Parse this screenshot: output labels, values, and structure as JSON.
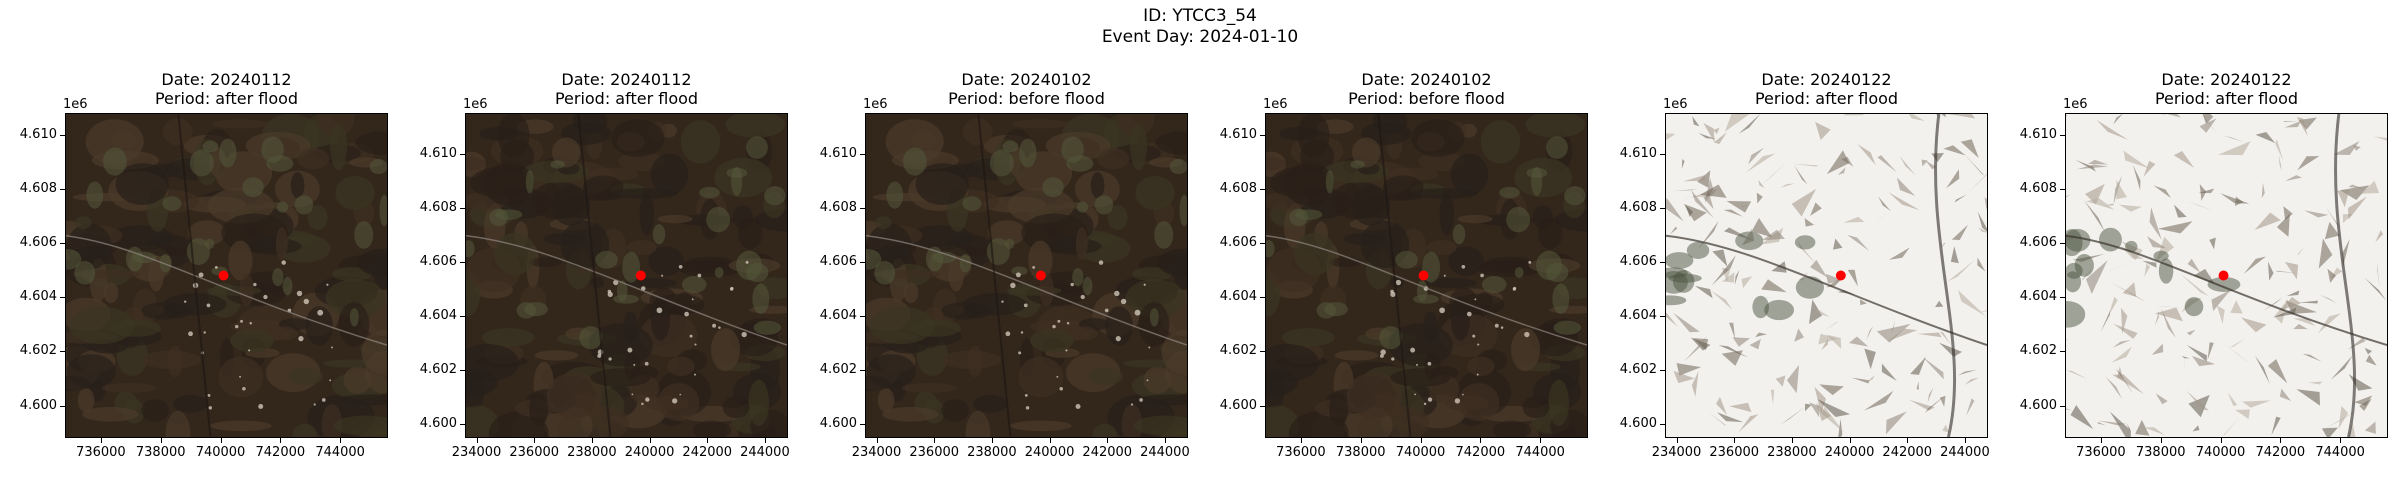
{
  "figure": {
    "id_line": "ID: YTCC3_54",
    "event_line": "Event Day: 2024-01-10"
  },
  "axis_offset": "1e6",
  "y_ticks": [
    "4.610",
    "4.608",
    "4.606",
    "4.604",
    "4.602",
    "4.600"
  ],
  "marker_color": "#ff0000",
  "panels": [
    {
      "date": "Date: 20240112",
      "period": "Period: after flood",
      "scene": "dark",
      "x_ticks": [
        "736000",
        "738000",
        "740000",
        "742000",
        "744000"
      ],
      "x_range": [
        734800,
        745600
      ],
      "y_ticks_visible": [
        "4.610",
        "4.608",
        "4.606",
        "4.604",
        "4.602",
        "4.600"
      ],
      "y_range": [
        4.5988,
        4.6108
      ],
      "marker": {
        "x": 740100,
        "y": 4.6048
      }
    },
    {
      "date": "Date: 20240112",
      "period": "Period: after flood",
      "scene": "dark",
      "x_ticks": [
        "234000",
        "236000",
        "238000",
        "240000",
        "242000",
        "244000"
      ],
      "x_range": [
        233600,
        244800
      ],
      "y_ticks_visible": [
        "4.610",
        "4.608",
        "4.606",
        "4.604",
        "4.602",
        "4.600"
      ],
      "y_range": [
        4.5995,
        4.6115
      ],
      "marker": {
        "x": 239700,
        "y": 4.6055
      }
    },
    {
      "date": "Date: 20240102",
      "period": "Period: before flood",
      "scene": "dark",
      "x_ticks": [
        "234000",
        "236000",
        "238000",
        "240000",
        "242000",
        "244000"
      ],
      "x_range": [
        233600,
        244800
      ],
      "y_ticks_visible": [
        "4.610",
        "4.608",
        "4.606",
        "4.604",
        "4.602",
        "4.600"
      ],
      "y_range": [
        4.5995,
        4.6115
      ],
      "marker": {
        "x": 239700,
        "y": 4.6055
      }
    },
    {
      "date": "Date: 20240102",
      "period": "Period: before flood",
      "scene": "dark",
      "x_ticks": [
        "736000",
        "738000",
        "740000",
        "742000",
        "744000"
      ],
      "x_range": [
        734800,
        745600
      ],
      "y_ticks_visible": [
        "4.610",
        "4.608",
        "4.606",
        "4.604",
        "4.602",
        "4.600"
      ],
      "y_range": [
        4.5988,
        4.6108
      ],
      "marker": {
        "x": 740100,
        "y": 4.6048
      }
    },
    {
      "date": "Date: 20240122",
      "period": "Period: after flood",
      "scene": "snow",
      "x_ticks": [
        "234000",
        "236000",
        "238000",
        "240000",
        "242000",
        "244000"
      ],
      "x_range": [
        233600,
        244800
      ],
      "y_ticks_visible": [
        "4.610",
        "4.608",
        "4.606",
        "4.604",
        "4.602",
        "4.600"
      ],
      "y_range": [
        4.5995,
        4.6115
      ],
      "marker": {
        "x": 239700,
        "y": 4.6055
      }
    },
    {
      "date": "Date: 20240122",
      "period": "Period: after flood",
      "scene": "snow",
      "x_ticks": [
        "736000",
        "738000",
        "740000",
        "742000",
        "744000"
      ],
      "x_range": [
        734800,
        745600
      ],
      "y_ticks_visible": [
        "4.610",
        "4.608",
        "4.606",
        "4.604",
        "4.602",
        "4.600"
      ],
      "y_range": [
        4.5988,
        4.6108
      ],
      "marker": {
        "x": 740100,
        "y": 4.6048
      }
    }
  ]
}
